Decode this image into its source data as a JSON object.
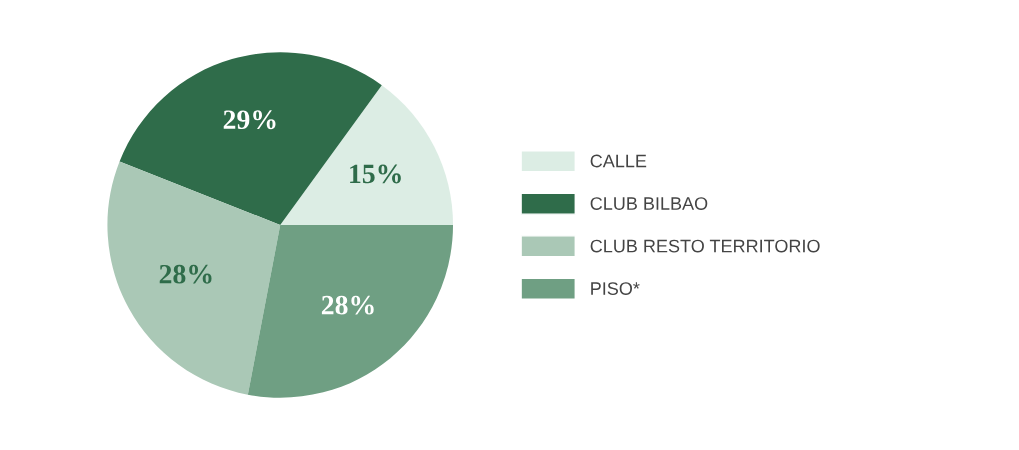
{
  "chart_data": {
    "type": "pie",
    "categories": [
      "CALLE",
      "CLUB BILBAO",
      "CLUB RESTO TERRITORIO",
      "PISO*"
    ],
    "values": [
      15,
      29,
      28,
      28
    ],
    "colors": [
      "#dcede4",
      "#2f6c4a",
      "#aac8b6",
      "#6f9f83"
    ],
    "value_labels": [
      "15%",
      "29%",
      "28%",
      "28%"
    ],
    "legend": "right"
  }
}
